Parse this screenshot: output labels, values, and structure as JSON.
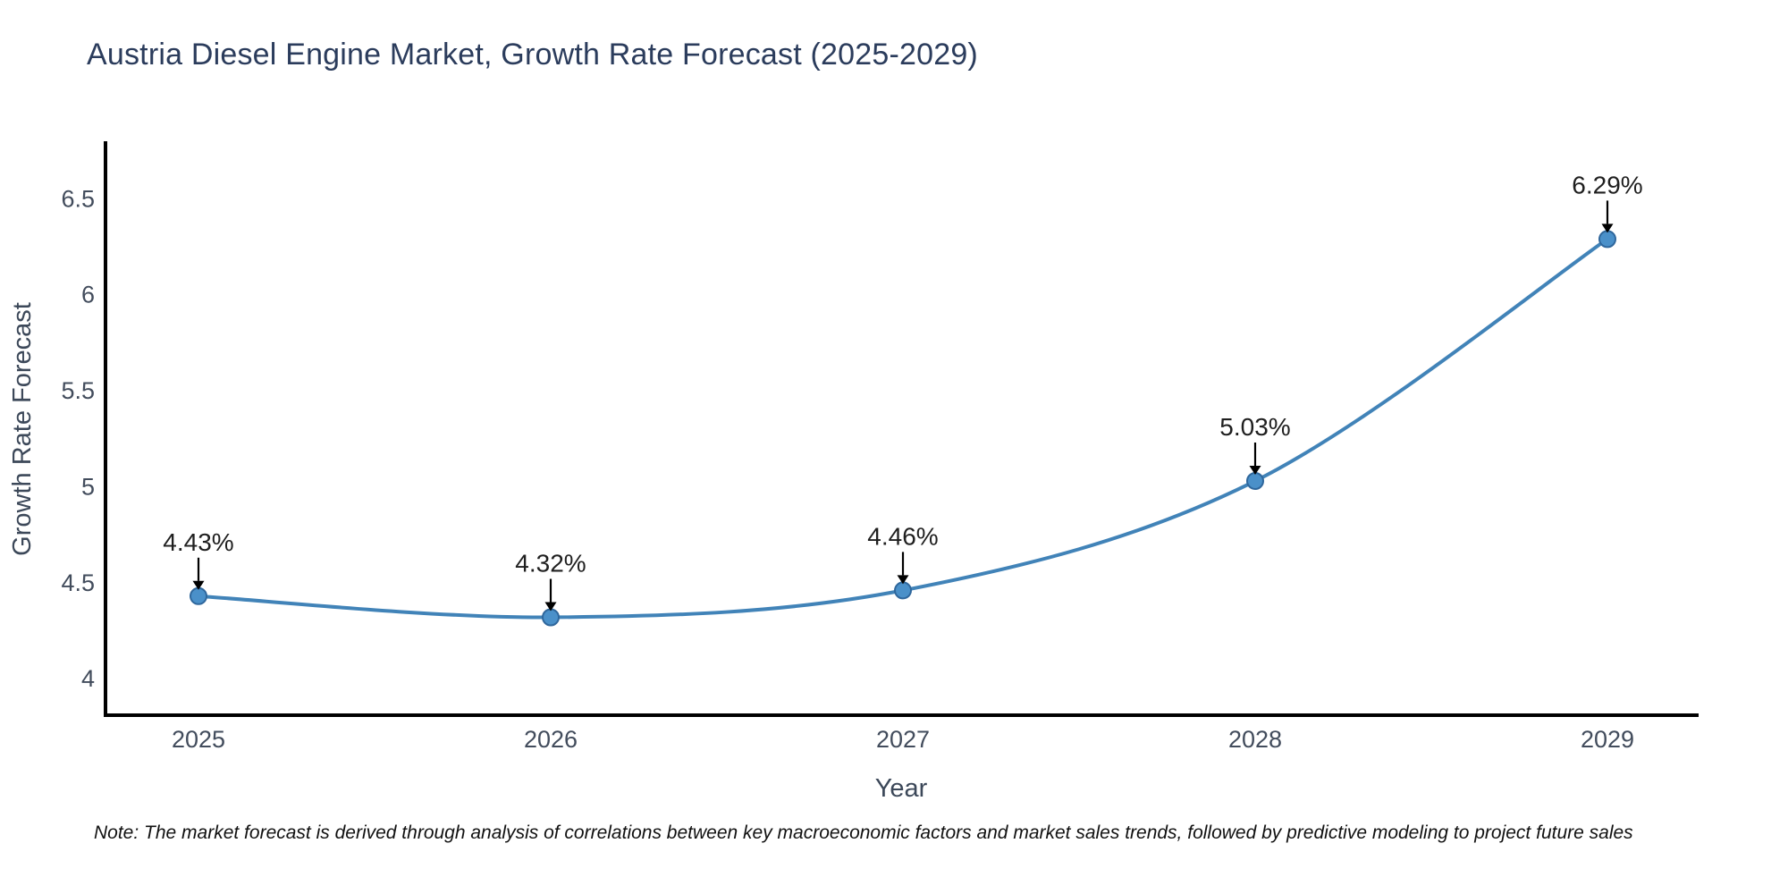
{
  "title": "Austria Diesel Engine Market, Growth Rate Forecast (2025-2029)",
  "note": "Note: The market forecast is derived through analysis of correlations between key macroeconomic factors and market sales trends, followed by predictive modeling to project future sales",
  "colors": {
    "line": "#4183b8",
    "marker_fill": "#4a90c9",
    "marker_edge": "#2f679c",
    "axis": "#000000",
    "title": "#2b3c5c",
    "tick": "#424c5c",
    "axis_title": "#3c4859",
    "annotation": "#1f1f1f",
    "arrow": "#000000",
    "note": "#111111",
    "background": "#ffffff"
  },
  "chart_data": {
    "type": "line",
    "title": "Austria Diesel Engine Market, Growth Rate Forecast (2025-2029)",
    "x": [
      2025,
      2026,
      2027,
      2028,
      2029
    ],
    "x_tick_labels": [
      "2025",
      "2026",
      "2027",
      "2028",
      "2029"
    ],
    "values": [
      4.43,
      4.32,
      4.46,
      5.03,
      6.29
    ],
    "point_labels": [
      "4.43%",
      "4.32%",
      "4.46%",
      "5.03%",
      "6.29%"
    ],
    "xlabel": "Year",
    "ylabel": "Growth Rate Forecast",
    "yticks": [
      4,
      4.5,
      5,
      5.5,
      6,
      6.5
    ],
    "ytick_labels": [
      "4",
      "4.5",
      "5",
      "5.5",
      "6",
      "6.5"
    ],
    "ylim": [
      3.81,
      6.79
    ],
    "line_shape": "spline",
    "markers": true,
    "grid": false,
    "legend": false,
    "annotations": "value labels with down arrows above each point"
  }
}
